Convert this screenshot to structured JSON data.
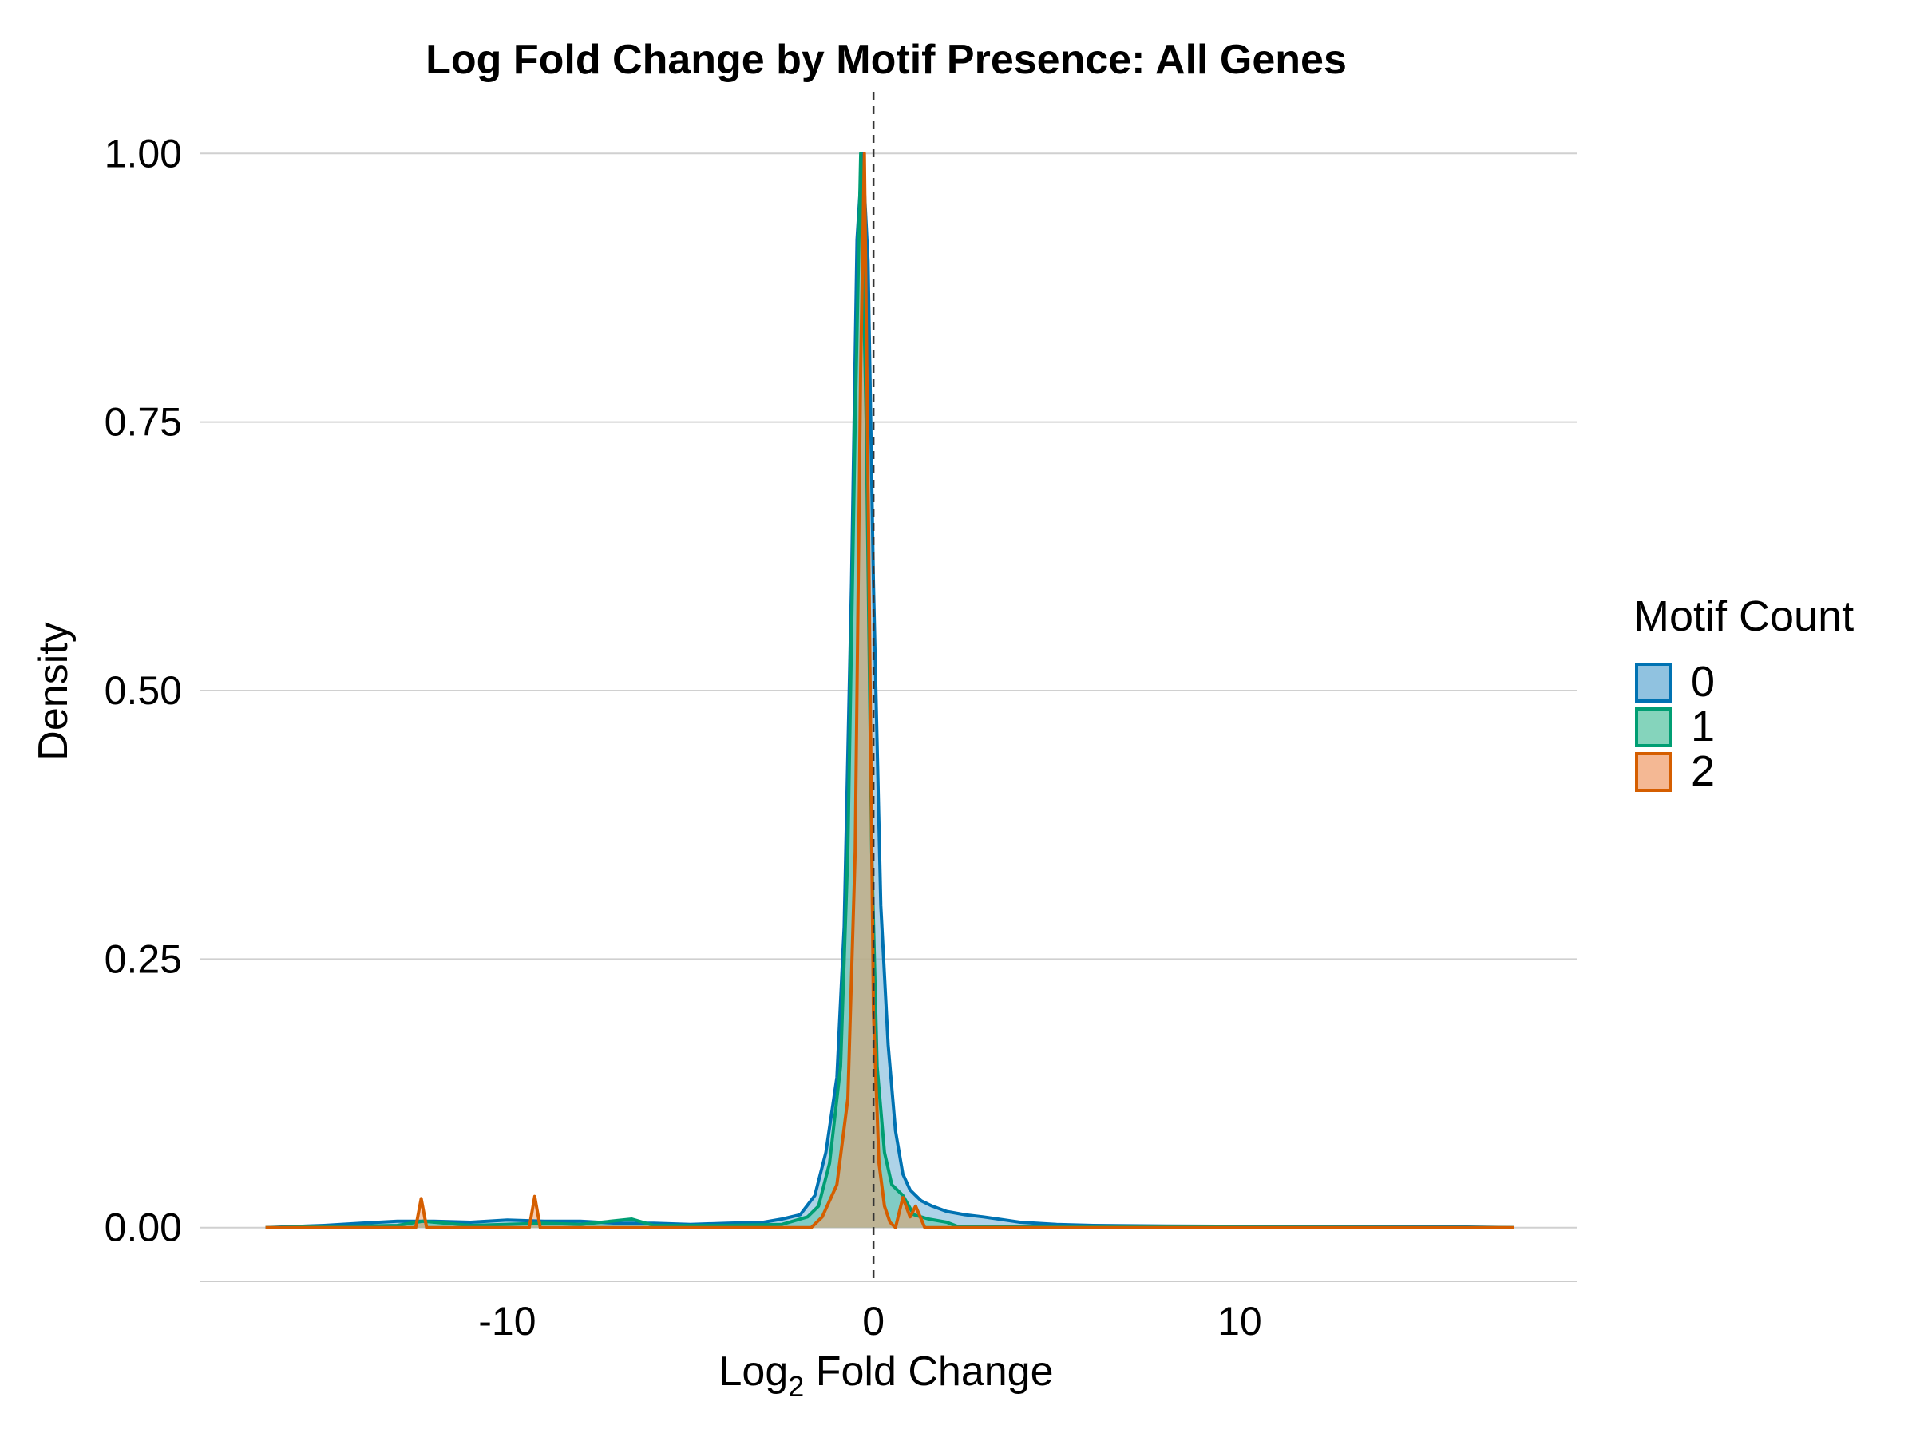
{
  "chart_data": {
    "type": "area",
    "title": "Log Fold Change by Motif Presence: All Genes",
    "xlabel_main": "Log",
    "xlabel_sub": "2",
    "xlabel_rest": " Fold Change",
    "ylabel": "Density",
    "xlim": [
      -18.4,
      19.2
    ],
    "ylim": [
      -0.05,
      1.05
    ],
    "x_ticks": [
      -10,
      0,
      10
    ],
    "x_tick_labels": [
      "-10",
      "0",
      "10"
    ],
    "y_ticks": [
      0,
      0.25,
      0.5,
      0.75,
      1.0
    ],
    "y_tick_labels": [
      "0.00",
      "0.25",
      "0.50",
      "0.75",
      "1.00"
    ],
    "grid": "horizontal major",
    "vline_x": 0,
    "legend": {
      "title": "Motif Count",
      "placement": "right"
    },
    "series": [
      {
        "name": "0",
        "line_color": "#0072B2",
        "fill_color": "#6BAED6",
        "fill_opacity": 0.55,
        "points": [
          [
            -16.6,
            0.0
          ],
          [
            -15,
            0.002
          ],
          [
            -14,
            0.004
          ],
          [
            -13,
            0.006
          ],
          [
            -12,
            0.006
          ],
          [
            -11,
            0.005
          ],
          [
            -10,
            0.007
          ],
          [
            -9,
            0.006
          ],
          [
            -8,
            0.006
          ],
          [
            -7,
            0.004
          ],
          [
            -6,
            0.004
          ],
          [
            -5,
            0.003
          ],
          [
            -4,
            0.004
          ],
          [
            -3,
            0.005
          ],
          [
            -2.5,
            0.008
          ],
          [
            -2,
            0.012
          ],
          [
            -1.6,
            0.03
          ],
          [
            -1.3,
            0.07
          ],
          [
            -1.0,
            0.14
          ],
          [
            -0.8,
            0.28
          ],
          [
            -0.6,
            0.6
          ],
          [
            -0.45,
            0.92
          ],
          [
            -0.3,
            1.0
          ],
          [
            -0.15,
            0.9
          ],
          [
            0,
            0.6
          ],
          [
            0.2,
            0.3
          ],
          [
            0.4,
            0.17
          ],
          [
            0.6,
            0.09
          ],
          [
            0.8,
            0.05
          ],
          [
            1.0,
            0.035
          ],
          [
            1.3,
            0.025
          ],
          [
            1.6,
            0.02
          ],
          [
            2,
            0.015
          ],
          [
            2.5,
            0.012
          ],
          [
            3,
            0.01
          ],
          [
            4,
            0.005
          ],
          [
            5,
            0.003
          ],
          [
            6,
            0.002
          ],
          [
            8,
            0.0015
          ],
          [
            10,
            0.0012
          ],
          [
            12,
            0.001
          ],
          [
            14,
            0.0008
          ],
          [
            16,
            0.0006
          ],
          [
            17.5,
            0.0
          ]
        ]
      },
      {
        "name": "1",
        "line_color": "#009E73",
        "fill_color": "#5CC6A6",
        "fill_opacity": 0.55,
        "points": [
          [
            -16.6,
            0.0
          ],
          [
            -13,
            0.002
          ],
          [
            -12.3,
            0.006
          ],
          [
            -11,
            0.002
          ],
          [
            -9,
            0.004
          ],
          [
            -8,
            0.003
          ],
          [
            -6.6,
            0.008
          ],
          [
            -6,
            0.002
          ],
          [
            -4,
            0.002
          ],
          [
            -2.5,
            0.003
          ],
          [
            -1.8,
            0.01
          ],
          [
            -1.5,
            0.02
          ],
          [
            -1.2,
            0.06
          ],
          [
            -0.9,
            0.15
          ],
          [
            -0.7,
            0.35
          ],
          [
            -0.5,
            0.75
          ],
          [
            -0.35,
            1.0
          ],
          [
            -0.2,
            0.75
          ],
          [
            -0.05,
            0.35
          ],
          [
            0.1,
            0.15
          ],
          [
            0.3,
            0.07
          ],
          [
            0.5,
            0.04
          ],
          [
            0.8,
            0.03
          ],
          [
            1.1,
            0.012
          ],
          [
            1.5,
            0.008
          ],
          [
            2,
            0.005
          ],
          [
            2.3,
            0.001
          ],
          [
            5,
            0.001
          ],
          [
            10,
            0.0005
          ],
          [
            17.5,
            0.0
          ]
        ]
      },
      {
        "name": "2",
        "line_color": "#D55E00",
        "fill_color": "#F0A070",
        "fill_opacity": 0.55,
        "points": [
          [
            -16.6,
            0.0
          ],
          [
            -12.5,
            0.0
          ],
          [
            -12.35,
            0.027
          ],
          [
            -12.2,
            0.0
          ],
          [
            -9.4,
            0.0
          ],
          [
            -9.25,
            0.029
          ],
          [
            -9.1,
            0.0
          ],
          [
            -1.7,
            0.0
          ],
          [
            -1.4,
            0.01
          ],
          [
            -1.0,
            0.04
          ],
          [
            -0.7,
            0.12
          ],
          [
            -0.5,
            0.35
          ],
          [
            -0.35,
            0.8
          ],
          [
            -0.25,
            1.0
          ],
          [
            -0.15,
            0.7
          ],
          [
            0,
            0.2
          ],
          [
            0.15,
            0.06
          ],
          [
            0.3,
            0.02
          ],
          [
            0.45,
            0.005
          ],
          [
            0.6,
            0.0
          ],
          [
            0.8,
            0.028
          ],
          [
            1.0,
            0.01
          ],
          [
            1.15,
            0.02
          ],
          [
            1.4,
            0.0
          ],
          [
            17.5,
            0.0
          ]
        ]
      }
    ]
  }
}
